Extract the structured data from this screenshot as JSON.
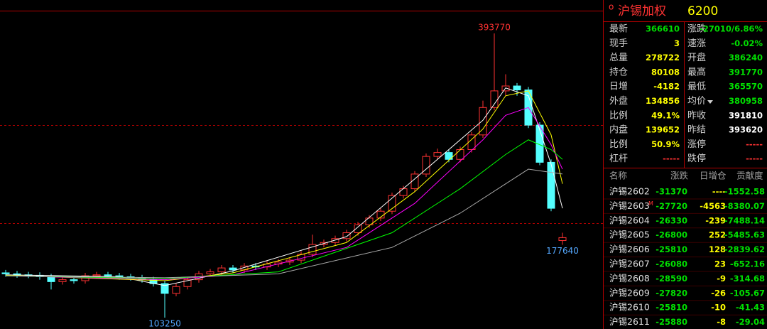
{
  "chart_data": {
    "type": "candlestick",
    "open": [
      149000,
      148000,
      147000,
      146500,
      145000,
      140000,
      142000,
      141000,
      146000,
      147000,
      146000,
      145000,
      144000,
      142000,
      138000,
      128000,
      135000,
      142000,
      148000,
      150000,
      154000,
      152000,
      156000,
      155000,
      158000,
      160000,
      162000,
      168000,
      178000,
      180000,
      184000,
      190000,
      198000,
      205000,
      212000,
      228000,
      235000,
      250000,
      268000,
      272000,
      265000,
      275000,
      290000,
      318000,
      335000,
      340000,
      336000,
      300000,
      262000,
      182000
    ],
    "high": [
      152000,
      151000,
      150000,
      149500,
      148000,
      145000,
      145000,
      149000,
      150000,
      150000,
      149000,
      148000,
      147000,
      145000,
      141000,
      138000,
      145000,
      151000,
      153000,
      157000,
      157000,
      159000,
      159000,
      161000,
      163000,
      165000,
      171000,
      188000,
      183000,
      187000,
      193000,
      201000,
      208000,
      215000,
      231000,
      238000,
      253000,
      271000,
      276000,
      275000,
      278000,
      293000,
      325000,
      393770,
      352000,
      343000,
      339000,
      303000,
      265000,
      190000
    ],
    "low": [
      145000,
      144000,
      143500,
      142000,
      132000,
      137000,
      138000,
      138000,
      143000,
      143000,
      142000,
      141000,
      139000,
      135000,
      103250,
      125000,
      132000,
      139000,
      145000,
      147000,
      149000,
      149000,
      152000,
      152000,
      155000,
      157000,
      159000,
      165000,
      175000,
      177000,
      181000,
      187000,
      195000,
      202000,
      209000,
      225000,
      232000,
      247000,
      265000,
      262000,
      262000,
      272000,
      287000,
      315000,
      330000,
      330000,
      297000,
      259000,
      212000,
      177640
    ],
    "close": [
      148000,
      147000,
      146500,
      145000,
      140000,
      142000,
      141000,
      146000,
      147000,
      146000,
      145000,
      144000,
      142000,
      138000,
      128000,
      135000,
      142000,
      148000,
      150000,
      154000,
      152000,
      156000,
      155000,
      158000,
      160000,
      162000,
      168000,
      178000,
      180000,
      184000,
      190000,
      198000,
      205000,
      212000,
      228000,
      235000,
      250000,
      268000,
      272000,
      265000,
      275000,
      290000,
      318000,
      335000,
      340000,
      336000,
      300000,
      262000,
      215000,
      185000
    ],
    "ylim": [
      91600,
      417000
    ],
    "up_color": "#ff3232",
    "down_color": "#54ffff",
    "moving_averages": [
      {
        "color": "#ffffff",
        "x": [
          0,
          10,
          14,
          20,
          30,
          36,
          42,
          44,
          46,
          48,
          49
        ],
        "values": [
          147000,
          145000,
          136000,
          151000,
          186000,
          245000,
          305000,
          338000,
          330000,
          260000,
          215000
        ]
      },
      {
        "color": "#ffff00",
        "x": [
          0,
          14,
          20,
          30,
          36,
          42,
          44,
          46,
          48,
          49
        ],
        "values": [
          146500,
          141000,
          149000,
          180000,
          232000,
          296000,
          330000,
          335000,
          290000,
          240000
        ]
      },
      {
        "color": "#ff00ff",
        "x": [
          0,
          14,
          20,
          30,
          36,
          42,
          44,
          46,
          48,
          49
        ],
        "values": [
          146000,
          142000,
          147000,
          175000,
          220000,
          285000,
          310000,
          318000,
          280000,
          255000
        ]
      },
      {
        "color": "#00ff00",
        "x": [
          0,
          14,
          24,
          34,
          40,
          44,
          46,
          48,
          49
        ],
        "values": [
          146000,
          143000,
          150000,
          190000,
          235000,
          270000,
          285000,
          275000,
          265000
        ]
      },
      {
        "color": "#aaaaaa",
        "x": [
          0,
          14,
          24,
          34,
          40,
          44,
          46,
          49
        ],
        "values": [
          146000,
          144000,
          148000,
          175000,
          210000,
          240000,
          255000,
          250000
        ]
      }
    ]
  },
  "panel": {
    "symbol": "沪锡加权",
    "code": "6200",
    "stats": [
      [
        {
          "label": "最新",
          "value": "366610",
          "color": "#00e000"
        },
        {
          "label": "涨跌",
          "value": "-27010/6.86%",
          "color": "#00e000"
        }
      ],
      [
        {
          "label": "现手",
          "value": "3",
          "color": "#ffff00"
        },
        {
          "label": "速涨",
          "value": "-0.02%",
          "color": "#00e000"
        }
      ],
      [
        {
          "label": "总量",
          "value": "278722",
          "color": "#ffff00"
        },
        {
          "label": "开盘",
          "value": "386240",
          "color": "#00e000"
        }
      ],
      [
        {
          "label": "持仓",
          "value": "80108",
          "color": "#ffff00"
        },
        {
          "label": "最高",
          "value": "391770",
          "color": "#00e000"
        }
      ],
      [
        {
          "label": "日增",
          "value": "-4182",
          "color": "#ffff00"
        },
        {
          "label": "最低",
          "value": "365570",
          "color": "#00e000"
        }
      ],
      [
        {
          "label": "外盘",
          "value": "134856",
          "color": "#ffff00"
        },
        {
          "label": "均价",
          "value": "380958",
          "color": "#00e000"
        }
      ],
      [
        {
          "label": "比例",
          "value": "49.1%",
          "color": "#ffff00"
        },
        {
          "label": "昨收",
          "value": "391810",
          "color": "#ffffff"
        }
      ],
      [
        {
          "label": "内盘",
          "value": "139652",
          "color": "#ffff00"
        },
        {
          "label": "昨结",
          "value": "393620",
          "color": "#ffffff"
        }
      ],
      [
        {
          "label": "比例",
          "value": "50.9%",
          "color": "#ffff00"
        },
        {
          "label": "涨停",
          "value": "-----",
          "color": "#ff3232"
        }
      ],
      [
        {
          "label": "杠杆",
          "value": "-----",
          "color": "#ff3232"
        },
        {
          "label": "跌停",
          "value": "-----",
          "color": "#ff3232"
        }
      ]
    ],
    "contracts": {
      "header": [
        "名称",
        "涨跌",
        "日增仓",
        "贡献度"
      ],
      "column_colors": [
        "#e0e0e0",
        "#00e000",
        "#ffff00",
        "#00e000"
      ],
      "rows": [
        {
          "name": "沪锡2602",
          "change": "-31370",
          "oi": "----",
          "contrib": "-1552.58"
        },
        {
          "name": "沪锡2603",
          "marker": "M",
          "change": "-27720",
          "oi": "-4563",
          "contrib": "-8380.07"
        },
        {
          "name": "沪锡2604",
          "change": "-26330",
          "oi": "-239",
          "contrib": "-7488.14"
        },
        {
          "name": "沪锡2605",
          "change": "-26800",
          "oi": "252",
          "contrib": "-5485.63"
        },
        {
          "name": "沪锡2606",
          "change": "-25810",
          "oi": "128",
          "contrib": "-2839.62"
        },
        {
          "name": "沪锡2607",
          "change": "-26080",
          "oi": "23",
          "contrib": "-652.16"
        },
        {
          "name": "沪锡2608",
          "change": "-28590",
          "oi": "-9",
          "contrib": "-314.68"
        },
        {
          "name": "沪锡2609",
          "change": "-27820",
          "oi": "-26",
          "contrib": "-105.67"
        },
        {
          "name": "沪锡2610",
          "change": "-25810",
          "oi": "-10",
          "contrib": "-41.43"
        },
        {
          "name": "沪锡2611",
          "change": "-25880",
          "oi": "-8",
          "contrib": "-29.04"
        }
      ]
    }
  }
}
